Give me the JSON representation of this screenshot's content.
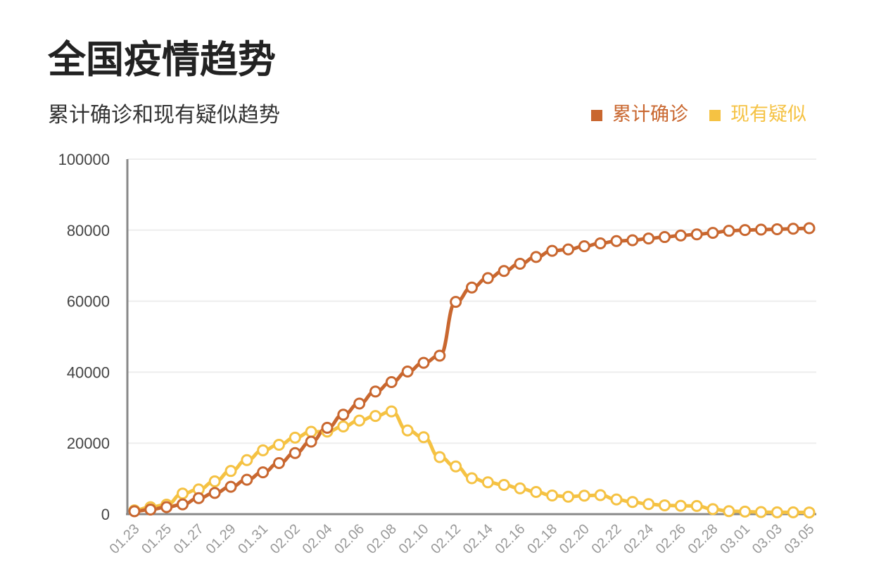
{
  "title": "全国疫情趋势",
  "chart_data": {
    "type": "line",
    "subtitle": "累计确诊和现有疑似趋势",
    "legend_position": "top-right",
    "ylim": [
      0,
      100000
    ],
    "yticks": [
      0,
      20000,
      40000,
      60000,
      80000,
      100000
    ],
    "grid": true,
    "x": [
      "01.23",
      "01.24",
      "01.25",
      "01.26",
      "01.27",
      "01.28",
      "01.29",
      "01.30",
      "01.31",
      "02.01",
      "02.02",
      "02.03",
      "02.04",
      "02.05",
      "02.06",
      "02.07",
      "02.08",
      "02.09",
      "02.10",
      "02.11",
      "02.12",
      "02.13",
      "02.14",
      "02.15",
      "02.16",
      "02.17",
      "02.18",
      "02.19",
      "02.20",
      "02.21",
      "02.22",
      "02.23",
      "02.24",
      "02.25",
      "02.26",
      "02.27",
      "02.28",
      "02.29",
      "03.01",
      "03.02",
      "03.03",
      "03.04",
      "03.05"
    ],
    "xticks": [
      "01.23",
      "01.25",
      "01.27",
      "01.29",
      "01.31",
      "02.02",
      "02.04",
      "02.06",
      "02.08",
      "02.10",
      "02.12",
      "02.14",
      "02.16",
      "02.18",
      "02.20",
      "02.22",
      "02.24",
      "02.26",
      "02.28",
      "03.01",
      "03.03",
      "03.05"
    ],
    "series": [
      {
        "name": "累计确诊",
        "color": "#c9672f",
        "values": [
          830,
          1287,
          1975,
          2744,
          4515,
          5974,
          7711,
          9692,
          11791,
          14380,
          17205,
          20438,
          24324,
          28018,
          31161,
          34546,
          37198,
          40171,
          42638,
          44653,
          59804,
          63851,
          66492,
          68500,
          70548,
          72436,
          74185,
          74576,
          75465,
          76288,
          76936,
          77150,
          77658,
          78064,
          78497,
          78824,
          79251,
          79824,
          80026,
          80151,
          80270,
          80409,
          80552
        ]
      },
      {
        "name": "现有疑似",
        "color": "#f5c243",
        "values": [
          1072,
          1965,
          2684,
          5794,
          6973,
          9239,
          12167,
          15238,
          17988,
          19544,
          21558,
          23214,
          23260,
          24702,
          26359,
          27657,
          28942,
          23589,
          21675,
          16067,
          13435,
          10109,
          8969,
          8228,
          7264,
          6242,
          5248,
          4922,
          5206,
          5365,
          4148,
          3434,
          2824,
          2491,
          2358,
          2308,
          1418,
          851,
          715,
          587,
          520,
          522,
          482
        ]
      }
    ]
  }
}
